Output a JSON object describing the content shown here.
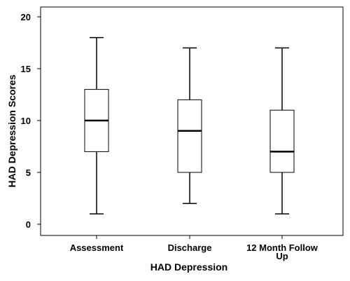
{
  "chart_data": {
    "type": "box",
    "xlabel": "HAD Depression",
    "ylabel": "HAD Depression Scores",
    "ylim": [
      0,
      20
    ],
    "yticks": [
      "0",
      "5",
      "10",
      "15",
      "20"
    ],
    "grid": false,
    "categories": [
      {
        "label_lines": [
          "Assessment"
        ],
        "min": 1,
        "q1": 7,
        "median": 10,
        "q3": 13,
        "max": 18
      },
      {
        "label_lines": [
          "Discharge"
        ],
        "min": 2,
        "q1": 5,
        "median": 9,
        "q3": 12,
        "max": 17
      },
      {
        "label_lines": [
          "12 Month Follow",
          "Up"
        ],
        "min": 1,
        "q1": 5,
        "median": 7,
        "q3": 11,
        "max": 17
      }
    ]
  }
}
